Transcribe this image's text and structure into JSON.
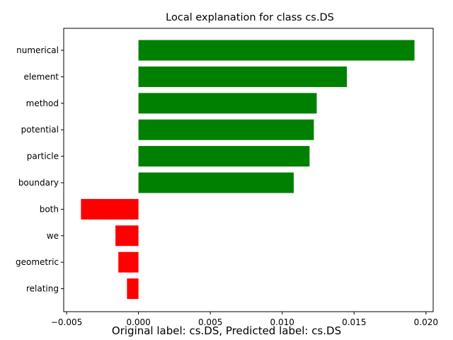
{
  "chart_data": {
    "type": "bar",
    "orientation": "horizontal",
    "title": "Local explanation for class cs.DS",
    "categories": [
      "numerical",
      "element",
      "method",
      "potential",
      "particle",
      "boundary",
      "both",
      "we",
      "geometric",
      "relating"
    ],
    "values": [
      0.0192,
      0.0145,
      0.0124,
      0.0122,
      0.0119,
      0.0108,
      -0.004,
      -0.0016,
      -0.0014,
      -0.0008
    ],
    "xlim": [
      -0.0052,
      0.0205
    ],
    "xticks": [
      -0.005,
      0.0,
      0.005,
      0.01,
      0.015,
      0.02
    ],
    "xtick_labels": [
      "−0.005",
      "0.000",
      "0.005",
      "0.010",
      "0.015",
      "0.020"
    ],
    "positive_color": "#008000",
    "negative_color": "#ff0000",
    "grid": false,
    "legend": "none"
  },
  "caption": "Original label: cs.DS, Predicted label: cs.DS"
}
